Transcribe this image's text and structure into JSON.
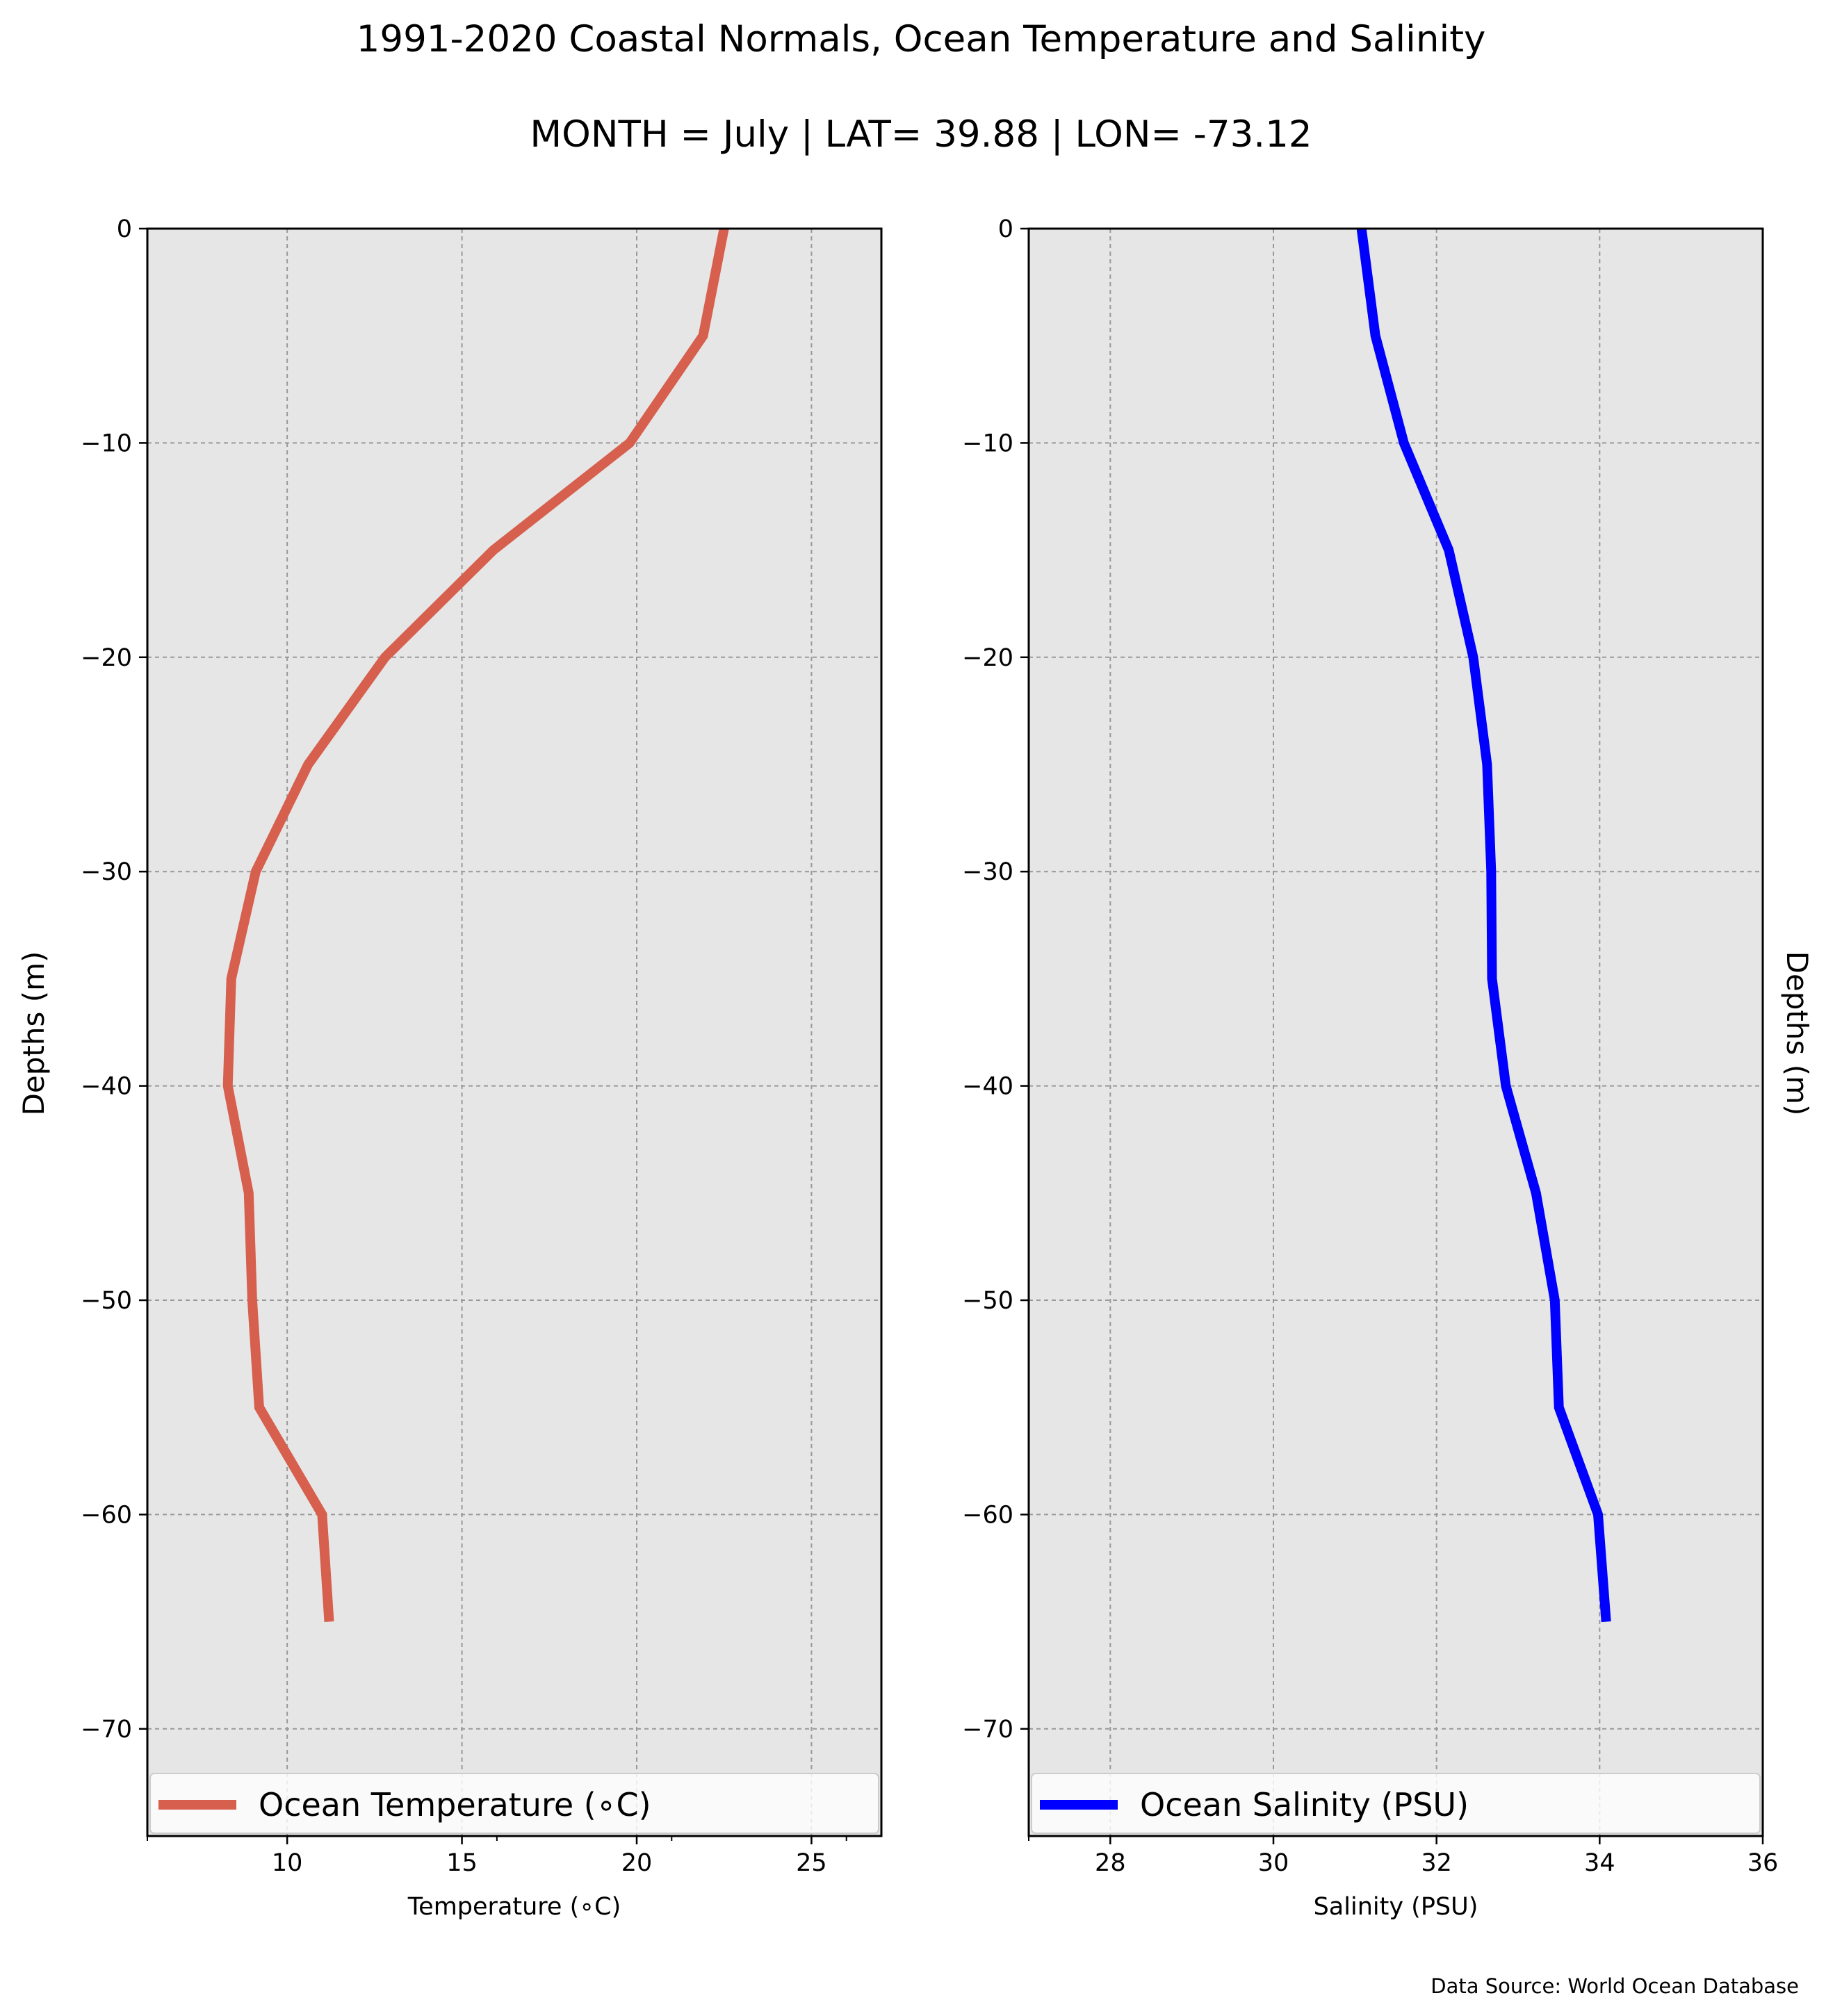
{
  "figure": {
    "title": "1991-2020 Coastal Normals, Ocean Temperature and Salinity",
    "subtitle": "MONTH = July | LAT= 39.88 | LON= -73.12",
    "source": "Data Source: World Ocean Database"
  },
  "chart_data": [
    {
      "type": "line",
      "xlabel": "Temperature (∘C)",
      "ylabel": "Depths (m)",
      "xlim": [
        6,
        27
      ],
      "ylim": [
        -75,
        0
      ],
      "xticks": [
        10,
        15,
        20,
        25
      ],
      "xticks_minor": [
        6,
        16,
        21,
        26
      ],
      "yticks": [
        0,
        -10,
        -20,
        -30,
        -40,
        -50,
        -60,
        -70
      ],
      "ytick_labels": [
        "0",
        "−10",
        "−20",
        "−30",
        "−40",
        "−50",
        "−60",
        "−70"
      ],
      "grid": true,
      "legend_position": "lower center",
      "series": [
        {
          "name": "Ocean Temperature (∘C)",
          "color": "#d65f4e",
          "x": [
            22.5,
            21.9,
            19.8,
            15.9,
            12.8,
            10.6,
            9.1,
            8.4,
            8.3,
            8.9,
            9.0,
            9.2,
            11.0,
            11.2
          ],
          "y": [
            0,
            -5,
            -10,
            -15,
            -20,
            -25,
            -30,
            -35,
            -40,
            -45,
            -50,
            -55,
            -60,
            -65
          ]
        }
      ]
    },
    {
      "type": "line",
      "xlabel": "Salinity (PSU)",
      "ylabel": "Depths (m)",
      "xlim": [
        27,
        36
      ],
      "ylim": [
        -75,
        0
      ],
      "xticks": [
        28,
        30,
        32,
        34,
        36
      ],
      "xticks_minor": [
        27
      ],
      "yticks": [
        0,
        -10,
        -20,
        -30,
        -40,
        -50,
        -60,
        -70
      ],
      "ytick_labels": [
        "0",
        "−10",
        "−20",
        "−30",
        "−40",
        "−50",
        "−60",
        "−70"
      ],
      "grid": true,
      "legend_position": "lower center",
      "series": [
        {
          "name": "Ocean Salinity (PSU)",
          "color": "#0000ff",
          "x": [
            31.08,
            31.25,
            31.6,
            32.15,
            32.45,
            32.62,
            32.67,
            32.68,
            32.85,
            33.22,
            33.45,
            33.5,
            33.98,
            34.08
          ],
          "y": [
            0,
            -5,
            -10,
            -15,
            -20,
            -25,
            -30,
            -35,
            -40,
            -45,
            -50,
            -55,
            -60,
            -65
          ]
        }
      ]
    }
  ]
}
